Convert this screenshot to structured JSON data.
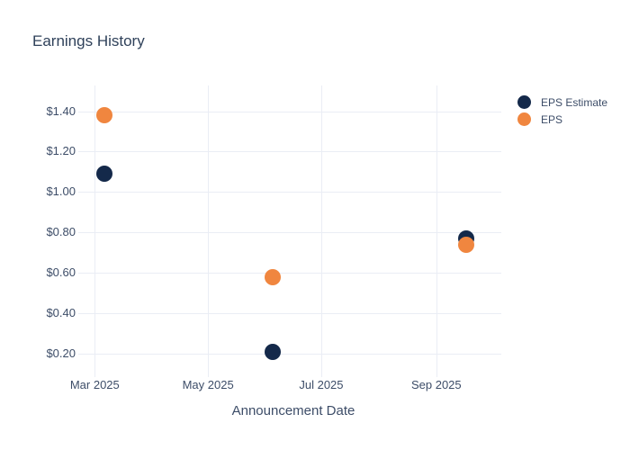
{
  "colors": {
    "background": "#ffffff",
    "grid": "#eaedf5",
    "title_text": "#2f415a",
    "tick_text": "#3d4d68",
    "eps_estimate": "#14294a",
    "eps": "#f0863f"
  },
  "chart_data": {
    "type": "scatter",
    "title": "Earnings History",
    "xlabel": "Announcement Date",
    "ylabel": "",
    "x": [
      "2025-03-06",
      "2025-06-05",
      "2025-09-17"
    ],
    "series": [
      {
        "name": "EPS Estimate",
        "color": "#14294a",
        "values": [
          1.09,
          0.21,
          0.77
        ]
      },
      {
        "name": "EPS",
        "color": "#f0863f",
        "values": [
          1.38,
          0.58,
          0.74
        ]
      }
    ],
    "yticks": [
      {
        "value": 1.4,
        "label": "$1.40"
      },
      {
        "value": 1.2,
        "label": "$1.20"
      },
      {
        "value": 1.0,
        "label": "$1.00"
      },
      {
        "value": 0.8,
        "label": "$0.80"
      },
      {
        "value": 0.6,
        "label": "$0.60"
      },
      {
        "value": 0.4,
        "label": "$0.40"
      },
      {
        "value": 0.2,
        "label": "$0.20"
      }
    ],
    "xticks": [
      {
        "date": "2025-03-01",
        "label": "Mar 2025"
      },
      {
        "date": "2025-05-01",
        "label": "May 2025"
      },
      {
        "date": "2025-07-01",
        "label": "Jul 2025"
      },
      {
        "date": "2025-09-01",
        "label": "Sep 2025"
      }
    ],
    "xlim": [
      "2025-02-24",
      "2025-10-06"
    ],
    "ylim": [
      0.111,
      1.527
    ],
    "grid": true,
    "legend_position": "right"
  }
}
